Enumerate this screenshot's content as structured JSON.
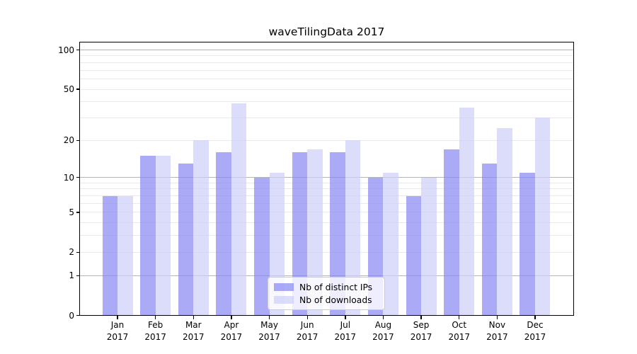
{
  "figure": {
    "background": "#ffffff"
  },
  "chart_data": {
    "type": "bar",
    "title": "waveTilingData 2017",
    "categories": [
      "Jan",
      "Feb",
      "Mar",
      "Apr",
      "May",
      "Jun",
      "Jul",
      "Aug",
      "Sep",
      "Oct",
      "Nov",
      "Dec"
    ],
    "category_year": "2017",
    "series": [
      {
        "name": "Nb of distinct IPs",
        "color": "rgba(134,134,244,0.7)",
        "values": [
          7,
          15,
          13,
          16,
          10,
          16,
          16,
          10,
          7,
          17,
          13,
          11
        ]
      },
      {
        "name": "Nb of downloads",
        "color": "rgba(205,205,250,0.7)",
        "values": [
          7,
          15,
          20,
          39,
          11,
          17,
          20,
          11,
          10,
          36,
          25,
          30
        ]
      }
    ],
    "yscale": "log1p",
    "ylim": [
      0,
      100
    ],
    "yticks": [
      0,
      1,
      2,
      5,
      10,
      20,
      50,
      100
    ],
    "major_grid_values": [
      1,
      10,
      100
    ],
    "minor_grid_values": [
      2,
      3,
      4,
      5,
      6,
      7,
      8,
      9,
      20,
      30,
      40,
      50,
      60,
      70,
      80,
      90
    ],
    "grid": {
      "major_color": "#b5b5b5",
      "minor_color": "#e9e9e9"
    },
    "legend": {
      "position": "lower-center"
    }
  }
}
